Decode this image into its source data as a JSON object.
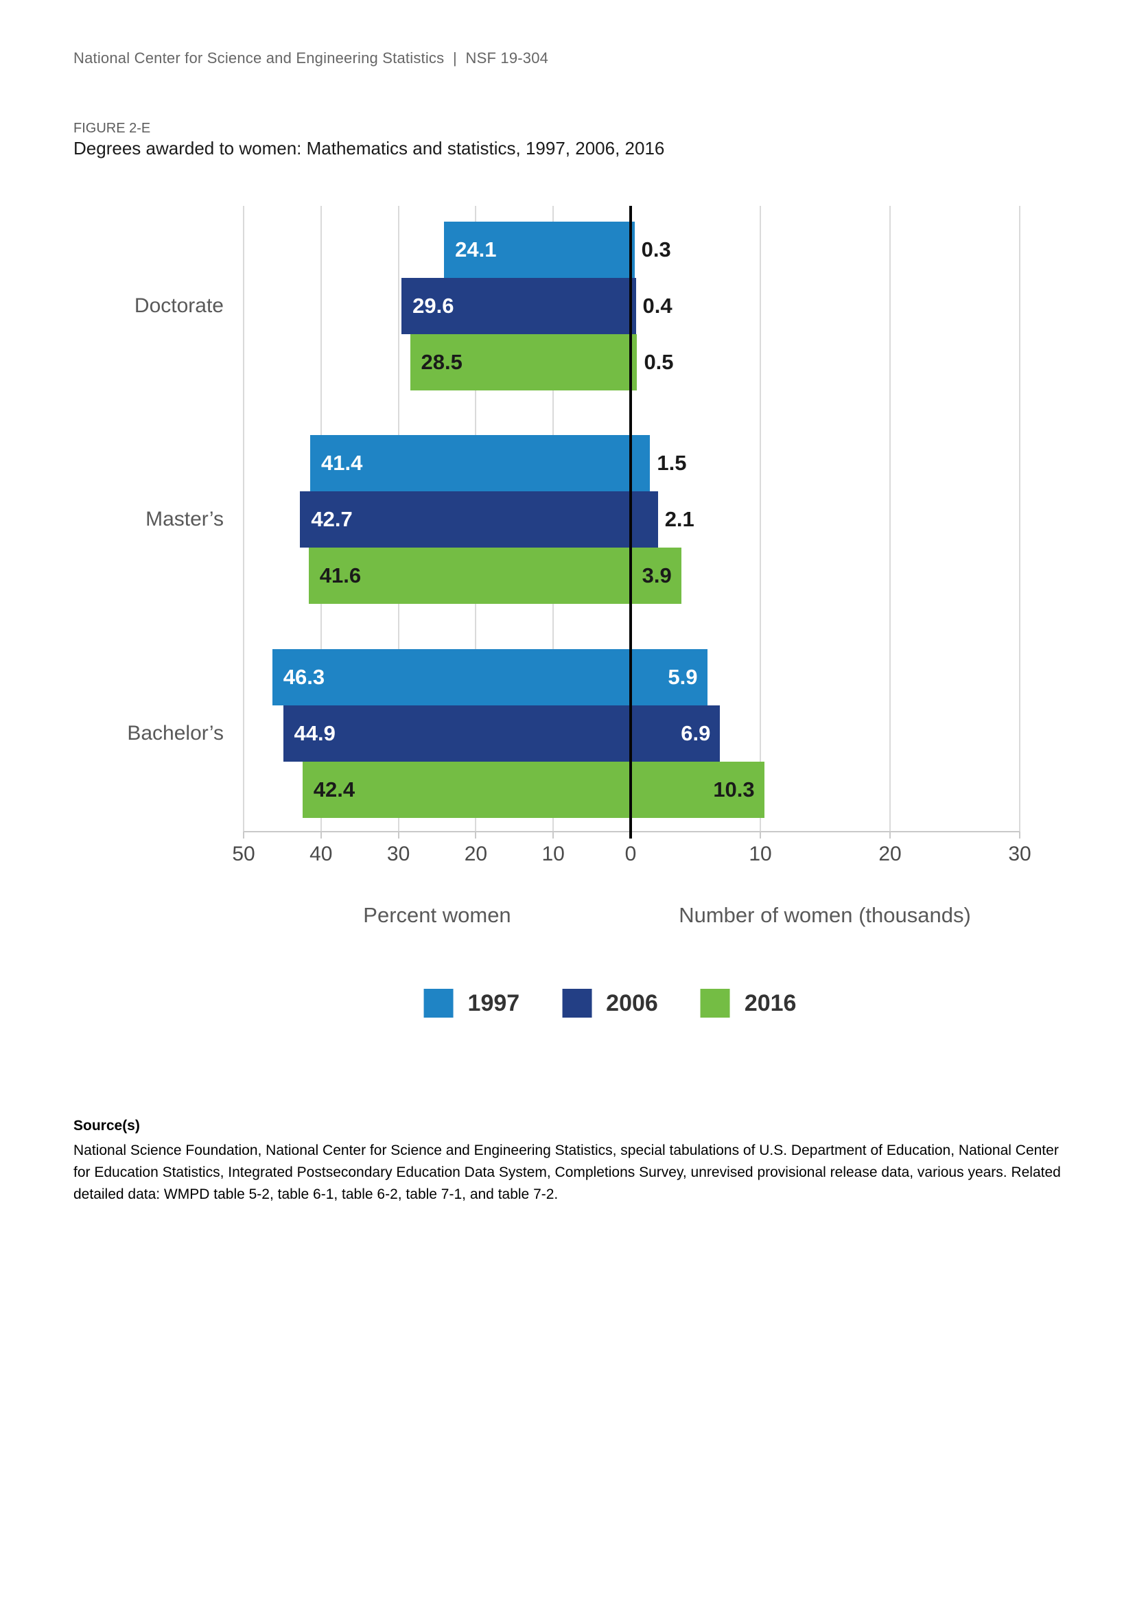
{
  "page": {
    "header": "National Center for Science and Engineering Statistics  |  NSF 19-304",
    "figure_label": "FIGURE 2-E",
    "title": "Degrees awarded to women: Mathematics and statistics, 1997, 2006, 2016"
  },
  "chart_data": {
    "type": "bar",
    "orientation": "horizontal-diverging",
    "categories": [
      "Doctorate",
      "Master’s",
      "Bachelor’s"
    ],
    "series": [
      {
        "name": "1997",
        "color": "#1F84C5",
        "percent_women": [
          24.1,
          41.4,
          46.3
        ],
        "number_thousands": [
          0.3,
          1.5,
          5.9
        ]
      },
      {
        "name": "2006",
        "color": "#233F85",
        "percent_women": [
          29.6,
          42.7,
          44.9
        ],
        "number_thousands": [
          0.4,
          2.1,
          6.9
        ]
      },
      {
        "name": "2016",
        "color": "#74BD44",
        "percent_women": [
          28.5,
          41.6,
          42.4
        ],
        "number_thousands": [
          0.5,
          3.9,
          10.3
        ]
      }
    ],
    "left_axis": {
      "label": "Percent women",
      "ticks": [
        50,
        40,
        30,
        20,
        10,
        0
      ],
      "max": 50,
      "direction": "reversed"
    },
    "right_axis": {
      "label": "Number of women (thousands)",
      "ticks": [
        0,
        10,
        20,
        30
      ],
      "max": 30
    },
    "legend": [
      "1997",
      "2006",
      "2016"
    ],
    "legend_position": "bottom",
    "grid": "vertical",
    "value_label_colors": {
      "on_blue": "#ffffff",
      "on_green": "#1a1a1a",
      "outside": "#1a1a1a"
    }
  },
  "source": {
    "heading": "Source(s)",
    "text": "National Science Foundation, National Center for Science and Engineering Statistics, special tabulations of U.S. Department of Education, National Center for Education Statistics, Integrated Postsecondary Education Data System, Completions Survey, unrevised provisional release data, various years. Related detailed data: WMPD table 5-2, table 6-1, table 6-2, table 7-1, and table 7-2."
  }
}
